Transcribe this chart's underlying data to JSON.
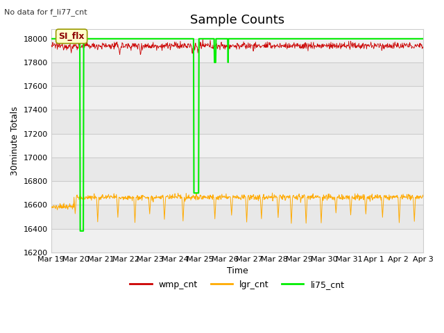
{
  "title": "Sample Counts",
  "no_data_text": "No data for f_li77_cnt",
  "ylabel": "30minute Totals",
  "xlabel": "Time",
  "annotation_text": "SI_flx",
  "ylim": [
    16200,
    18080
  ],
  "yticks": [
    16200,
    16400,
    16600,
    16800,
    17000,
    17200,
    17400,
    17600,
    17800,
    18000
  ],
  "fig_bg_color": "#ffffff",
  "plot_bg_color": "#ffffff",
  "wmp_color": "#cc0000",
  "lgr_color": "#ffaa00",
  "li75_color": "#00ee00",
  "wmp_base": 17940,
  "wmp_noise": 15,
  "lgr_base": 16665,
  "lgr_noise": 12,
  "title_fontsize": 13,
  "legend_fontsize": 9,
  "tick_fontsize": 8,
  "label_fontsize": 9,
  "band_colors": [
    "#f0f0f0",
    "#e0e0e0"
  ],
  "grid_color": "#cccccc",
  "xtick_labels": [
    "Mar 19",
    "Mar 20",
    "Mar 21",
    "Mar 22",
    "Mar 23",
    "Mar 24",
    "Mar 25",
    "Mar 26",
    "Mar 27",
    "Mar 28",
    "Mar 29",
    "Mar 30",
    "Mar 31",
    "Apr 1",
    "Apr 2",
    "Apr 3"
  ]
}
